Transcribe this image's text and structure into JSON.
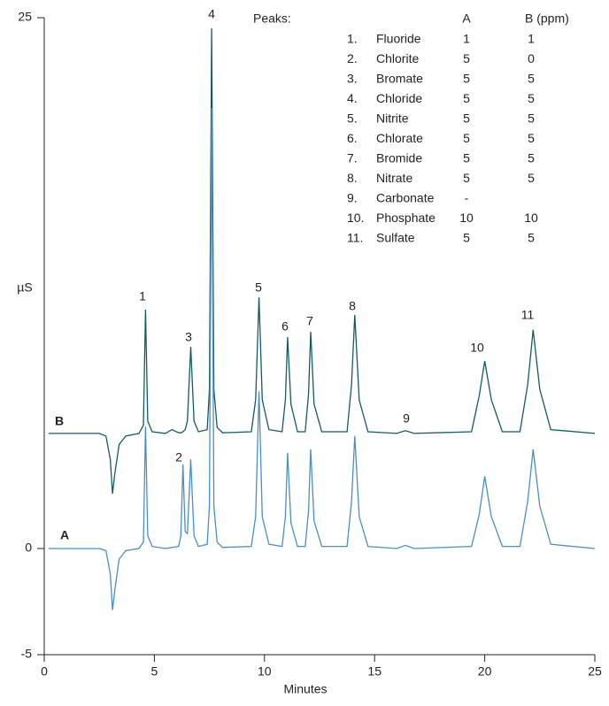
{
  "chart_data": {
    "type": "line",
    "x_label": "Minutes",
    "y_label": "µS",
    "xlim": [
      0,
      25
    ],
    "xticks": [
      0,
      5,
      10,
      15,
      20,
      25
    ],
    "ylim": [
      -5,
      25
    ],
    "yticks": [
      -5,
      0,
      25
    ],
    "x": [
      0.2,
      2.5,
      2.8,
      3.0,
      3.1,
      3.2,
      3.4,
      3.7,
      4.3,
      4.5,
      4.6,
      4.7,
      4.9,
      5.5,
      5.8,
      6.1,
      6.2,
      6.3,
      6.4,
      6.5,
      6.65,
      6.8,
      7.0,
      7.4,
      7.5,
      7.6,
      7.7,
      7.85,
      8.1,
      9.4,
      9.6,
      9.75,
      9.9,
      10.2,
      10.8,
      10.95,
      11.05,
      11.2,
      11.5,
      11.85,
      12.0,
      12.1,
      12.25,
      12.6,
      13.75,
      13.95,
      14.1,
      14.3,
      14.7,
      16.0,
      16.4,
      16.8,
      19.4,
      19.75,
      20.0,
      20.3,
      20.8,
      21.6,
      21.95,
      22.2,
      22.5,
      23.0,
      25.0
    ],
    "series": [
      {
        "name": "B",
        "color": "#145a66",
        "values": [
          5.42,
          5.42,
          5.3,
          4.2,
          2.58,
          3.5,
          4.9,
          5.3,
          5.42,
          5.8,
          11.25,
          6.0,
          5.5,
          5.42,
          5.6,
          5.45,
          5.45,
          5.5,
          5.6,
          6.0,
          9.5,
          6.0,
          5.5,
          5.6,
          7.5,
          24.5,
          7.5,
          5.7,
          5.45,
          5.5,
          7.0,
          11.83,
          7.0,
          5.6,
          5.5,
          7.0,
          9.96,
          6.8,
          5.5,
          5.5,
          7.3,
          10.2,
          6.8,
          5.5,
          5.5,
          7.7,
          11.0,
          7.0,
          5.5,
          5.42,
          5.55,
          5.42,
          5.5,
          7.2,
          8.83,
          7.0,
          5.5,
          5.5,
          7.7,
          10.3,
          7.5,
          5.6,
          5.42
        ]
      },
      {
        "name": "A",
        "color": "#4a8fc0",
        "values": [
          0,
          0,
          -0.1,
          -1.2,
          -2.9,
          -2.0,
          -0.5,
          -0.1,
          0,
          0.3,
          5.75,
          0.6,
          0.1,
          0,
          0.05,
          0.1,
          0.6,
          3.96,
          0.8,
          0.7,
          4.2,
          0.6,
          0.1,
          0.2,
          2.0,
          20.75,
          2.0,
          0.3,
          0.05,
          0.1,
          1.5,
          7.4,
          1.5,
          0.2,
          0.1,
          1.5,
          4.5,
          1.2,
          0.1,
          0.1,
          1.8,
          4.67,
          1.3,
          0.1,
          0.1,
          2.2,
          5.3,
          1.5,
          0.1,
          0,
          0.15,
          0,
          0.1,
          1.6,
          3.4,
          1.5,
          0.1,
          0.1,
          2.2,
          4.67,
          2.0,
          0.2,
          0
        ]
      }
    ],
    "peak_labels": [
      "1",
      "2",
      "3",
      "4",
      "5",
      "6",
      "7",
      "8",
      "9",
      "10",
      "11"
    ],
    "peaks_table": {
      "title": "Peaks:",
      "columns": [
        "A",
        "B (ppm)"
      ],
      "rows": [
        [
          "1.",
          "Fluoride",
          "1",
          "1"
        ],
        [
          "2.",
          "Chlorite",
          "5",
          "0"
        ],
        [
          "3.",
          "Bromate",
          "5",
          "5"
        ],
        [
          "4.",
          "Chloride",
          "5",
          "5"
        ],
        [
          "5.",
          "Nitrite",
          "5",
          "5"
        ],
        [
          "6.",
          "Chlorate",
          "5",
          "5"
        ],
        [
          "7.",
          "Bromide",
          "5",
          "5"
        ],
        [
          "8.",
          "Nitrate",
          "5",
          "5"
        ],
        [
          "9.",
          "Carbonate",
          "-",
          ""
        ],
        [
          "10.",
          "Phosphate",
          "10",
          "10"
        ],
        [
          "11.",
          "Sulfate",
          "5",
          "5"
        ]
      ]
    }
  }
}
